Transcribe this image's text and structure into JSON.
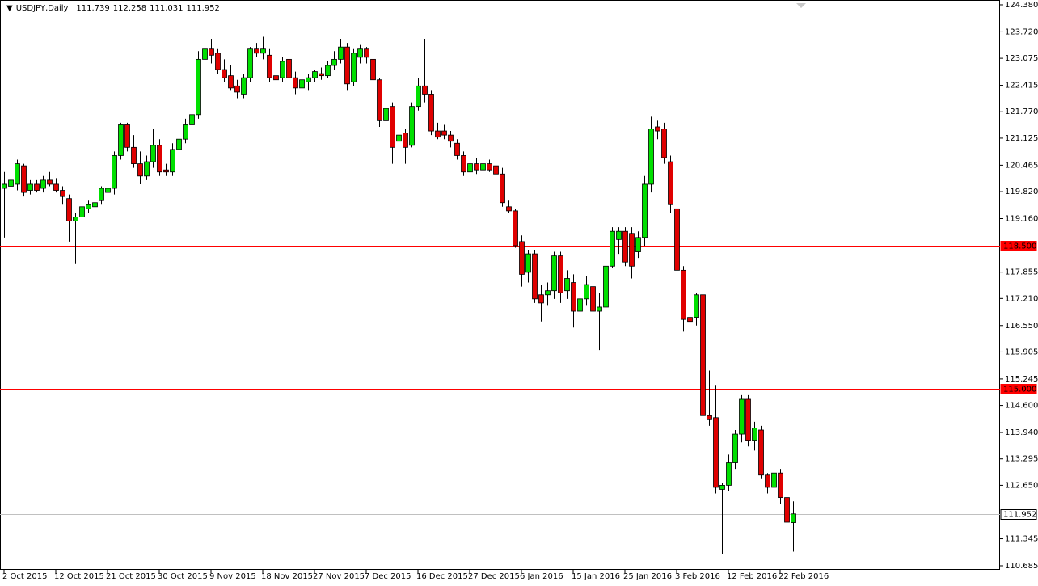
{
  "chart_data": {
    "type": "candlestick",
    "header": {
      "symbol": "USDJPY,Daily",
      "open": 111.739,
      "high": 112.258,
      "low": 111.031,
      "close": 111.952
    },
    "categories": [
      "2 Oct 2015",
      null,
      null,
      null,
      null,
      null,
      null,
      null,
      "12 Oct 2015",
      null,
      null,
      null,
      null,
      null,
      null,
      null,
      "21 Oct 2015",
      null,
      null,
      null,
      null,
      null,
      null,
      null,
      "30 Oct 2015",
      null,
      null,
      null,
      null,
      null,
      null,
      null,
      "9 Nov 2015",
      null,
      null,
      null,
      null,
      null,
      null,
      null,
      "18 Nov 2015",
      null,
      null,
      null,
      null,
      null,
      null,
      null,
      "27 Nov 2015",
      null,
      null,
      null,
      null,
      null,
      null,
      null,
      "7 Dec 2015",
      null,
      null,
      null,
      null,
      null,
      null,
      null,
      "16 Dec 2015",
      null,
      null,
      null,
      null,
      null,
      null,
      null,
      "27 Dec 2015",
      null,
      null,
      null,
      null,
      null,
      null,
      null,
      "6 Jan 2016",
      null,
      null,
      null,
      null,
      null,
      null,
      null,
      "15 Jan 2016",
      null,
      null,
      null,
      null,
      null,
      null,
      null,
      "25 Jan 2016",
      null,
      null,
      null,
      null,
      null,
      null,
      null,
      "3 Feb 2016",
      null,
      null,
      null,
      null,
      null,
      null,
      null,
      "12 Feb 2016",
      null,
      null,
      null,
      null,
      null,
      null,
      null,
      "22 Feb 2016",
      null,
      null
    ],
    "open": [
      119.9,
      119.95,
      120.0,
      120.45,
      119.85,
      120.0,
      119.9,
      120.1,
      120.0,
      119.85,
      119.65,
      119.1,
      119.2,
      119.4,
      119.45,
      119.6,
      119.8,
      119.9,
      120.7,
      121.45,
      120.9,
      120.5,
      120.2,
      120.55,
      120.95,
      120.35,
      120.3,
      120.85,
      121.1,
      121.45,
      121.7,
      123.05,
      123.3,
      123.2,
      122.8,
      122.65,
      122.4,
      122.2,
      122.6,
      123.3,
      123.2,
      123.15,
      122.65,
      122.6,
      123.05,
      122.6,
      122.35,
      122.5,
      122.6,
      122.7,
      122.65,
      122.9,
      123.05,
      123.35,
      122.5,
      123.1,
      123.3,
      123.05,
      122.55,
      121.55,
      121.9,
      121.05,
      121.25,
      120.95,
      121.9,
      122.4,
      122.2,
      121.3,
      121.3,
      121.2,
      121.0,
      120.7,
      120.3,
      120.5,
      120.35,
      120.5,
      120.45,
      120.25,
      119.45,
      119.35,
      118.6,
      117.85,
      118.3,
      117.3,
      117.3,
      117.4,
      118.25,
      117.4,
      117.6,
      116.9,
      117.2,
      117.5,
      116.9,
      117.0,
      118.0,
      118.65,
      118.85,
      118.8,
      118.35,
      118.7,
      120.0,
      121.4,
      121.35,
      120.55,
      119.4,
      117.9,
      116.75,
      116.75,
      117.3,
      114.35,
      114.3,
      112.55,
      112.65,
      113.2,
      113.9,
      114.75,
      113.75,
      114.0,
      112.9,
      112.6,
      112.95,
      112.35,
      111.739
    ],
    "high": [
      120.3,
      120.15,
      120.6,
      120.5,
      120.1,
      120.1,
      120.2,
      120.3,
      120.15,
      119.95,
      119.75,
      119.3,
      119.5,
      119.6,
      119.65,
      119.95,
      120.0,
      120.8,
      121.5,
      121.5,
      121.2,
      120.8,
      120.7,
      121.35,
      121.1,
      120.5,
      121.0,
      121.3,
      121.6,
      121.8,
      123.25,
      123.45,
      123.55,
      123.3,
      123.05,
      122.9,
      122.55,
      122.7,
      123.35,
      123.45,
      123.6,
      123.3,
      123.0,
      123.1,
      123.1,
      122.75,
      122.65,
      122.7,
      122.8,
      122.85,
      123.0,
      123.25,
      123.55,
      123.45,
      123.3,
      123.4,
      123.35,
      123.1,
      122.6,
      122.0,
      122.0,
      121.35,
      121.35,
      122.0,
      122.6,
      123.55,
      122.3,
      121.5,
      121.45,
      121.3,
      121.1,
      120.8,
      120.6,
      120.65,
      120.6,
      120.6,
      120.55,
      120.4,
      119.6,
      119.4,
      118.75,
      118.4,
      118.4,
      117.55,
      117.6,
      118.35,
      118.35,
      117.9,
      117.8,
      117.35,
      117.75,
      117.6,
      117.35,
      118.1,
      118.95,
      118.95,
      118.95,
      118.95,
      118.85,
      120.2,
      121.65,
      121.55,
      121.5,
      120.7,
      119.45,
      118.0,
      117.0,
      117.35,
      117.5,
      115.45,
      115.1,
      112.7,
      113.4,
      114.0,
      114.85,
      114.85,
      114.2,
      114.1,
      112.95,
      113.35,
      113.05,
      112.5,
      112.258
    ],
    "low": [
      118.7,
      119.8,
      119.85,
      119.7,
      119.75,
      119.8,
      119.8,
      119.95,
      119.8,
      119.5,
      118.6,
      118.05,
      119.0,
      119.3,
      119.35,
      119.5,
      119.7,
      119.75,
      120.6,
      120.8,
      120.4,
      120.0,
      120.1,
      120.4,
      120.2,
      120.2,
      120.2,
      120.7,
      121.0,
      121.3,
      121.6,
      122.9,
      122.95,
      122.7,
      122.5,
      122.3,
      122.1,
      122.1,
      122.5,
      123.1,
      123.05,
      122.5,
      122.45,
      122.5,
      122.4,
      122.2,
      122.2,
      122.3,
      122.5,
      122.55,
      122.6,
      122.8,
      122.95,
      122.3,
      122.4,
      122.95,
      122.95,
      122.5,
      121.4,
      121.3,
      120.5,
      120.6,
      120.5,
      120.9,
      121.8,
      122.0,
      121.2,
      121.1,
      121.1,
      120.9,
      120.6,
      120.2,
      120.2,
      120.25,
      120.3,
      120.3,
      120.15,
      119.45,
      119.3,
      118.45,
      117.5,
      117.6,
      117.1,
      116.65,
      117.05,
      117.2,
      117.1,
      117.2,
      116.5,
      116.65,
      117.05,
      116.6,
      115.95,
      116.75,
      117.95,
      118.3,
      118.0,
      117.7,
      118.2,
      118.5,
      119.8,
      121.1,
      120.5,
      119.3,
      117.7,
      116.4,
      116.25,
      116.55,
      114.15,
      114.1,
      112.45,
      110.98,
      112.5,
      113.05,
      113.7,
      113.6,
      113.5,
      112.8,
      112.45,
      112.4,
      112.2,
      111.6,
      111.031
    ],
    "close": [
      120.0,
      120.1,
      120.5,
      119.8,
      120.0,
      119.85,
      120.1,
      120.0,
      119.85,
      119.7,
      119.1,
      119.2,
      119.45,
      119.5,
      119.55,
      119.9,
      119.9,
      120.7,
      121.45,
      120.9,
      120.5,
      120.2,
      120.55,
      120.95,
      120.3,
      120.3,
      120.85,
      121.1,
      121.45,
      121.7,
      123.05,
      123.3,
      123.15,
      122.8,
      122.6,
      122.35,
      122.25,
      122.6,
      123.3,
      123.2,
      123.3,
      122.6,
      122.55,
      123.0,
      122.6,
      122.35,
      122.55,
      122.6,
      122.75,
      122.65,
      122.9,
      123.05,
      123.35,
      122.45,
      123.2,
      123.3,
      123.1,
      122.55,
      121.55,
      121.85,
      120.9,
      121.2,
      120.9,
      121.9,
      122.4,
      122.2,
      121.3,
      121.15,
      121.2,
      121.05,
      120.7,
      120.3,
      120.5,
      120.35,
      120.5,
      120.35,
      120.25,
      119.55,
      119.35,
      118.5,
      117.8,
      118.3,
      117.2,
      117.1,
      117.4,
      118.25,
      117.35,
      117.7,
      116.9,
      117.2,
      117.55,
      116.9,
      117.0,
      118.0,
      118.85,
      118.85,
      118.1,
      118.0,
      118.7,
      120.0,
      121.35,
      121.3,
      120.65,
      119.5,
      117.9,
      116.7,
      116.65,
      117.3,
      114.35,
      114.25,
      112.6,
      112.65,
      113.2,
      113.9,
      114.75,
      113.75,
      114.05,
      112.9,
      112.6,
      112.95,
      112.35,
      111.75,
      111.952
    ],
    "up_color": "#00e000",
    "down_color": "#e00000",
    "hlines": [
      {
        "value": 118.5,
        "label": "118.500",
        "color": "#ff0000"
      },
      {
        "value": 115,
        "label": "115.000",
        "color": "#ff0000"
      },
      {
        "value": 111.952,
        "label": "111.952",
        "color": "#c0c0c0"
      }
    ],
    "ylim": [
      110.586,
      124.498
    ],
    "yticks": [
      {
        "value": 124.38,
        "label": "124.380"
      },
      {
        "value": 123.72,
        "label": "123.720"
      },
      123.075,
      122.415,
      {
        "value": 121.77,
        "label": "121.770"
      },
      121.125,
      120.465,
      {
        "value": 119.82,
        "label": "119.820"
      },
      {
        "value": 119.16,
        "label": "119.160"
      },
      117.855,
      {
        "value": 117.21,
        "label": "117.210"
      },
      {
        "value": 116.55,
        "label": "116.550"
      },
      115.905,
      115.245,
      {
        "value": 114.6,
        "label": "114.600"
      },
      {
        "value": 113.94,
        "label": "113.940"
      },
      113.295,
      {
        "value": 112.65,
        "label": "112.650"
      },
      111.345,
      110.685
    ]
  }
}
